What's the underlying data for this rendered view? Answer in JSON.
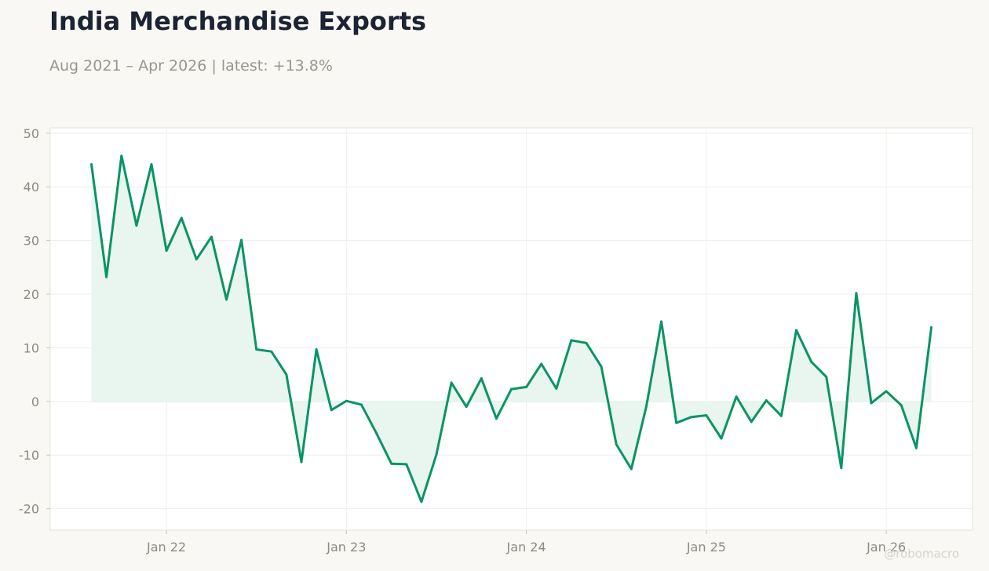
{
  "title": "India Merchandise Exports",
  "subtitle": "Aug 2021 – Apr 2026 | latest: +13.8%",
  "watermark": "@robomacro",
  "colors": {
    "line": "#0a9464",
    "fill": "#e9f5ef",
    "background": "#f9f8f4",
    "plot": "#ffffff"
  },
  "chart_data": {
    "type": "area",
    "title": "India Merchandise Exports",
    "subtitle": "Aug 2021 – Apr 2026 | latest: +13.8%",
    "xlabel": "",
    "ylabel": "",
    "ylim": [
      -24,
      51
    ],
    "yticks": [
      50,
      40,
      30,
      20,
      10,
      0,
      -10,
      -20
    ],
    "ytick_labels": [
      "50",
      "40",
      "30",
      "20",
      "10",
      "0",
      "-10",
      "-20"
    ],
    "xticks": [
      "2022-01",
      "2023-01",
      "2024-01",
      "2025-01",
      "2026-01"
    ],
    "xtick_labels": [
      "Jan 22",
      "Jan 23",
      "Jan 24",
      "Jan 25",
      "Jan 26"
    ],
    "grid": true,
    "series": [
      {
        "x": [
          "2021-08",
          "2021-09",
          "2021-10",
          "2021-11",
          "2021-12",
          "2022-01",
          "2022-02",
          "2022-03",
          "2022-04",
          "2022-05",
          "2022-06",
          "2022-07",
          "2022-08",
          "2022-09",
          "2022-10",
          "2022-11",
          "2022-12",
          "2023-01",
          "2023-02",
          "2023-03",
          "2023-04",
          "2023-05",
          "2023-06",
          "2023-07",
          "2023-08",
          "2023-09",
          "2023-10",
          "2023-11",
          "2023-12",
          "2024-01",
          "2024-02",
          "2024-03",
          "2024-04",
          "2024-05",
          "2024-06",
          "2024-07",
          "2024-08",
          "2024-09",
          "2024-10",
          "2024-11",
          "2024-12",
          "2025-01",
          "2025-02",
          "2025-03",
          "2025-04",
          "2025-05",
          "2025-06",
          "2025-07",
          "2025-08",
          "2025-09",
          "2025-10",
          "2025-11",
          "2025-12",
          "2026-01",
          "2026-02",
          "2026-03",
          "2026-04"
        ],
        "values": [
          44.2,
          23.2,
          45.8,
          32.8,
          44.2,
          28.1,
          34.2,
          26.5,
          30.7,
          19.0,
          30.1,
          9.7,
          9.3,
          5.0,
          -11.3,
          9.7,
          -1.6,
          0.1,
          -0.6,
          -5.9,
          -11.6,
          -11.7,
          -18.7,
          -9.9,
          3.5,
          -1.0,
          4.3,
          -3.2,
          2.3,
          2.7,
          7.0,
          2.4,
          11.4,
          10.9,
          6.5,
          -8.0,
          -12.6,
          -0.9,
          14.9,
          -4.0,
          -2.9,
          -2.6,
          -6.9,
          0.9,
          -3.8,
          0.2,
          -2.7,
          13.3,
          7.4,
          4.6,
          -12.4,
          20.2,
          -0.3,
          1.9,
          -0.7,
          -8.7,
          13.8
        ]
      }
    ]
  }
}
